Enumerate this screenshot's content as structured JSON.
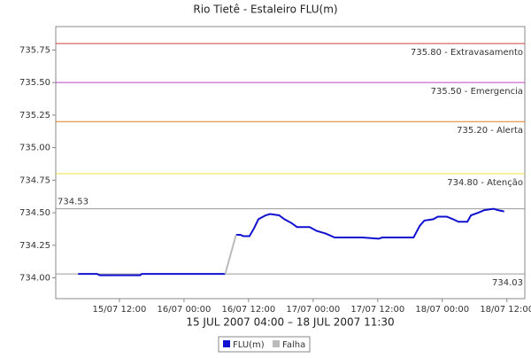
{
  "chart_data": {
    "type": "line",
    "title": "Rio Tietê - Estaleiro FLU(m)",
    "subtitle": "15 JUL 2007 04:00 – 18 JUL 2007 11:30",
    "xlim": [
      "15/07 00:10",
      "18/07 15:20"
    ],
    "xticks": [
      "15/07 12:00",
      "16/07 00:00",
      "16/07 12:00",
      "17/07 00:00",
      "17/07 12:00",
      "18/07 00:00",
      "18/07 12:00"
    ],
    "ylim": [
      733.84,
      735.93
    ],
    "yticks": [
      {
        "value": 734.0,
        "label": "734.00"
      },
      734.25,
      {
        "value": 734.5,
        "label": "734.50"
      },
      734.75,
      {
        "value": 735.0,
        "label": "735.00"
      },
      735.25,
      {
        "value": 735.5,
        "label": "735.50"
      },
      735.75
    ],
    "reference_lines": [
      {
        "value": 735.8,
        "label": "735.80 - Extravasamento",
        "color": "#d04040",
        "label_side": "right"
      },
      {
        "value": 735.5,
        "label": "735.50 - Emergencia",
        "color": "#c040c0",
        "label_side": "right"
      },
      {
        "value": 735.2,
        "label": "735.20 - Alerta",
        "color": "#e08020",
        "label_side": "right"
      },
      {
        "value": 734.8,
        "label": "734.80 - Atenção",
        "color": "#e8e040",
        "label_side": "right"
      },
      {
        "value": 734.53,
        "label": "734.53",
        "color": "#999999",
        "label_side": "left"
      },
      {
        "value": 734.03,
        "label": "734.03",
        "color": "#999999",
        "label_side": "right"
      }
    ],
    "series": [
      {
        "name": "FLU(m)",
        "color": "#1010d0",
        "x": [
          "15/07 04:20",
          "15/07 07:50",
          "15/07 08:20",
          "15/07 15:50",
          "15/07 16:10",
          "16/07 07:40",
          null,
          "16/07 09:40",
          "16/07 10:30",
          "16/07 11:00",
          "16/07 12:10",
          "16/07 13:00",
          "16/07 13:50",
          "16/07 15:10",
          "16/07 16:00",
          "16/07 17:40",
          "16/07 18:40",
          "16/07 20:00",
          "16/07 21:00",
          "16/07 23:20",
          "17/07 00:40",
          "17/07 02:20",
          "17/07 04:00",
          "17/07 09:10",
          "17/07 12:10",
          "17/07 12:50",
          "17/07 18:40",
          "17/07 19:50",
          "17/07 20:40",
          "17/07 22:20",
          "17/07 23:10",
          "18/07 00:50",
          "18/07 02:00",
          "18/07 03:00",
          "18/07 04:40",
          "18/07 05:20",
          "18/07 06:40",
          "18/07 07:50",
          "18/07 09:30",
          "18/07 10:20",
          "18/07 11:30"
        ],
        "values": [
          734.03,
          734.03,
          734.02,
          734.02,
          734.03,
          734.03,
          null,
          734.33,
          734.33,
          734.32,
          734.32,
          734.38,
          734.45,
          734.48,
          734.49,
          734.48,
          734.45,
          734.42,
          734.39,
          734.39,
          734.36,
          734.34,
          734.31,
          734.31,
          734.3,
          734.31,
          734.31,
          734.4,
          734.44,
          734.45,
          734.47,
          734.47,
          734.45,
          734.43,
          734.43,
          734.48,
          734.5,
          734.52,
          734.53,
          734.52,
          734.51
        ]
      },
      {
        "name": "Falha",
        "color": "#bbbbbb",
        "x": [
          "16/07 07:40",
          "16/07 09:40"
        ],
        "values": [
          734.03,
          734.33
        ]
      }
    ]
  }
}
